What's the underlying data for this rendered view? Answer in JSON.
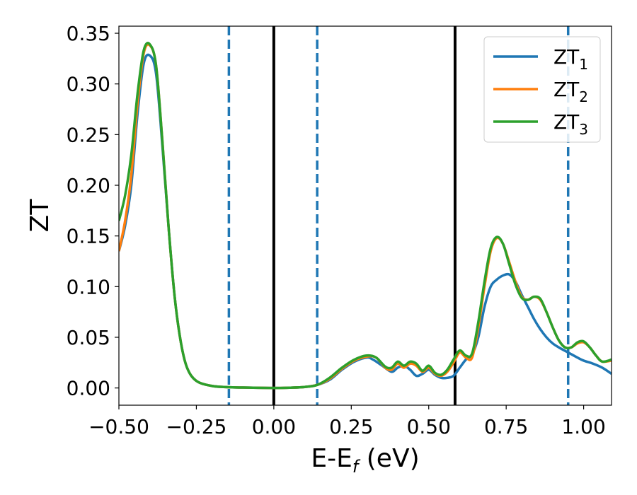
{
  "chart_data": {
    "type": "line",
    "title": "",
    "xlabel": "E-E",
    "xlabel_sub": "f",
    "xlabel_unit": " (eV)",
    "ylabel": "ZT",
    "xlim": [
      -0.5,
      1.09
    ],
    "ylim": [
      -0.017,
      0.357
    ],
    "xticks": [
      -0.5,
      -0.25,
      0.0,
      0.25,
      0.5,
      0.75,
      1.0
    ],
    "xtick_labels": [
      "−0.50",
      "−0.25",
      "0.00",
      "0.25",
      "0.50",
      "0.75",
      "1.00"
    ],
    "yticks": [
      0.0,
      0.05,
      0.1,
      0.15,
      0.2,
      0.25,
      0.3,
      0.35
    ],
    "ytick_labels": [
      "0.00",
      "0.05",
      "0.10",
      "0.15",
      "0.20",
      "0.25",
      "0.30",
      "0.35"
    ],
    "grid": false,
    "legend_position": "top-right",
    "vertical_lines": [
      {
        "x": -0.145,
        "color": "#1f77b4",
        "style": "dashed"
      },
      {
        "x": 0.0,
        "color": "#000000",
        "style": "solid"
      },
      {
        "x": 0.14,
        "color": "#1f77b4",
        "style": "dashed"
      },
      {
        "x": 0.585,
        "color": "#000000",
        "style": "solid"
      },
      {
        "x": 0.95,
        "color": "#1f77b4",
        "style": "dashed"
      }
    ],
    "series": [
      {
        "name": "ZT",
        "name_sub": "1",
        "color": "#1f77b4",
        "points": [
          [
            -0.5,
            0.135
          ],
          [
            -0.48,
            0.16
          ],
          [
            -0.46,
            0.2
          ],
          [
            -0.44,
            0.27
          ],
          [
            -0.42,
            0.32
          ],
          [
            -0.4,
            0.328
          ],
          [
            -0.38,
            0.31
          ],
          [
            -0.36,
            0.24
          ],
          [
            -0.34,
            0.16
          ],
          [
            -0.32,
            0.09
          ],
          [
            -0.3,
            0.045
          ],
          [
            -0.28,
            0.02
          ],
          [
            -0.25,
            0.007
          ],
          [
            -0.2,
            0.002
          ],
          [
            -0.15,
            0.0008
          ],
          [
            -0.1,
            0.0004
          ],
          [
            0.0,
            0.0
          ],
          [
            0.05,
            0.0003
          ],
          [
            0.1,
            0.001
          ],
          [
            0.14,
            0.003
          ],
          [
            0.18,
            0.008
          ],
          [
            0.22,
            0.018
          ],
          [
            0.26,
            0.026
          ],
          [
            0.3,
            0.03
          ],
          [
            0.32,
            0.028
          ],
          [
            0.35,
            0.022
          ],
          [
            0.38,
            0.016
          ],
          [
            0.4,
            0.02
          ],
          [
            0.42,
            0.022
          ],
          [
            0.44,
            0.018
          ],
          [
            0.46,
            0.012
          ],
          [
            0.48,
            0.014
          ],
          [
            0.5,
            0.018
          ],
          [
            0.52,
            0.013
          ],
          [
            0.54,
            0.01
          ],
          [
            0.56,
            0.01
          ],
          [
            0.58,
            0.012
          ],
          [
            0.6,
            0.02
          ],
          [
            0.62,
            0.028
          ],
          [
            0.64,
            0.033
          ],
          [
            0.66,
            0.05
          ],
          [
            0.68,
            0.08
          ],
          [
            0.7,
            0.1
          ],
          [
            0.72,
            0.107
          ],
          [
            0.74,
            0.111
          ],
          [
            0.76,
            0.112
          ],
          [
            0.78,
            0.105
          ],
          [
            0.8,
            0.092
          ],
          [
            0.82,
            0.08
          ],
          [
            0.84,
            0.068
          ],
          [
            0.86,
            0.058
          ],
          [
            0.88,
            0.05
          ],
          [
            0.9,
            0.044
          ],
          [
            0.92,
            0.04
          ],
          [
            0.95,
            0.035
          ],
          [
            0.98,
            0.03
          ],
          [
            1.0,
            0.027
          ],
          [
            1.03,
            0.024
          ],
          [
            1.06,
            0.02
          ],
          [
            1.09,
            0.014
          ]
        ]
      },
      {
        "name": "ZT",
        "name_sub": "2",
        "color": "#ff7f0e",
        "points": [
          [
            -0.5,
            0.135
          ],
          [
            -0.48,
            0.165
          ],
          [
            -0.46,
            0.21
          ],
          [
            -0.44,
            0.28
          ],
          [
            -0.42,
            0.33
          ],
          [
            -0.4,
            0.338
          ],
          [
            -0.38,
            0.318
          ],
          [
            -0.36,
            0.245
          ],
          [
            -0.34,
            0.16
          ],
          [
            -0.32,
            0.09
          ],
          [
            -0.3,
            0.045
          ],
          [
            -0.28,
            0.02
          ],
          [
            -0.25,
            0.007
          ],
          [
            -0.2,
            0.002
          ],
          [
            -0.15,
            0.0008
          ],
          [
            -0.1,
            0.0004
          ],
          [
            0.0,
            0.0
          ],
          [
            0.05,
            0.0003
          ],
          [
            0.1,
            0.001
          ],
          [
            0.14,
            0.003
          ],
          [
            0.18,
            0.009
          ],
          [
            0.22,
            0.019
          ],
          [
            0.26,
            0.027
          ],
          [
            0.3,
            0.031
          ],
          [
            0.33,
            0.03
          ],
          [
            0.36,
            0.02
          ],
          [
            0.38,
            0.018
          ],
          [
            0.4,
            0.024
          ],
          [
            0.42,
            0.02
          ],
          [
            0.44,
            0.024
          ],
          [
            0.46,
            0.022
          ],
          [
            0.48,
            0.016
          ],
          [
            0.5,
            0.02
          ],
          [
            0.52,
            0.014
          ],
          [
            0.54,
            0.012
          ],
          [
            0.56,
            0.016
          ],
          [
            0.58,
            0.025
          ],
          [
            0.6,
            0.035
          ],
          [
            0.62,
            0.03
          ],
          [
            0.64,
            0.03
          ],
          [
            0.66,
            0.06
          ],
          [
            0.68,
            0.1
          ],
          [
            0.7,
            0.135
          ],
          [
            0.72,
            0.148
          ],
          [
            0.74,
            0.142
          ],
          [
            0.76,
            0.124
          ],
          [
            0.78,
            0.105
          ],
          [
            0.8,
            0.09
          ],
          [
            0.82,
            0.087
          ],
          [
            0.84,
            0.09
          ],
          [
            0.86,
            0.087
          ],
          [
            0.88,
            0.075
          ],
          [
            0.9,
            0.06
          ],
          [
            0.92,
            0.047
          ],
          [
            0.94,
            0.04
          ],
          [
            0.96,
            0.04
          ],
          [
            0.98,
            0.044
          ],
          [
            1.0,
            0.045
          ],
          [
            1.02,
            0.04
          ],
          [
            1.04,
            0.032
          ],
          [
            1.06,
            0.026
          ],
          [
            1.09,
            0.027
          ]
        ]
      },
      {
        "name": "ZT",
        "name_sub": "3",
        "color": "#2ca02c",
        "points": [
          [
            -0.5,
            0.165
          ],
          [
            -0.48,
            0.19
          ],
          [
            -0.46,
            0.23
          ],
          [
            -0.44,
            0.29
          ],
          [
            -0.42,
            0.333
          ],
          [
            -0.4,
            0.339
          ],
          [
            -0.38,
            0.318
          ],
          [
            -0.36,
            0.245
          ],
          [
            -0.34,
            0.16
          ],
          [
            -0.32,
            0.09
          ],
          [
            -0.3,
            0.045
          ],
          [
            -0.28,
            0.02
          ],
          [
            -0.25,
            0.007
          ],
          [
            -0.2,
            0.002
          ],
          [
            -0.15,
            0.0008
          ],
          [
            -0.1,
            0.0004
          ],
          [
            0.0,
            0.0
          ],
          [
            0.05,
            0.0003
          ],
          [
            0.1,
            0.001
          ],
          [
            0.14,
            0.003
          ],
          [
            0.18,
            0.01
          ],
          [
            0.22,
            0.02
          ],
          [
            0.26,
            0.028
          ],
          [
            0.3,
            0.032
          ],
          [
            0.33,
            0.03
          ],
          [
            0.36,
            0.021
          ],
          [
            0.38,
            0.02
          ],
          [
            0.4,
            0.026
          ],
          [
            0.42,
            0.022
          ],
          [
            0.44,
            0.026
          ],
          [
            0.46,
            0.024
          ],
          [
            0.48,
            0.017
          ],
          [
            0.5,
            0.022
          ],
          [
            0.52,
            0.015
          ],
          [
            0.54,
            0.013
          ],
          [
            0.56,
            0.018
          ],
          [
            0.58,
            0.028
          ],
          [
            0.6,
            0.037
          ],
          [
            0.62,
            0.032
          ],
          [
            0.64,
            0.034
          ],
          [
            0.66,
            0.065
          ],
          [
            0.68,
            0.105
          ],
          [
            0.7,
            0.138
          ],
          [
            0.72,
            0.149
          ],
          [
            0.74,
            0.142
          ],
          [
            0.76,
            0.122
          ],
          [
            0.78,
            0.102
          ],
          [
            0.8,
            0.089
          ],
          [
            0.82,
            0.087
          ],
          [
            0.84,
            0.09
          ],
          [
            0.86,
            0.088
          ],
          [
            0.88,
            0.075
          ],
          [
            0.9,
            0.06
          ],
          [
            0.92,
            0.047
          ],
          [
            0.94,
            0.04
          ],
          [
            0.96,
            0.04
          ],
          [
            0.98,
            0.045
          ],
          [
            1.0,
            0.046
          ],
          [
            1.02,
            0.04
          ],
          [
            1.04,
            0.032
          ],
          [
            1.06,
            0.026
          ],
          [
            1.09,
            0.028
          ]
        ]
      }
    ]
  }
}
